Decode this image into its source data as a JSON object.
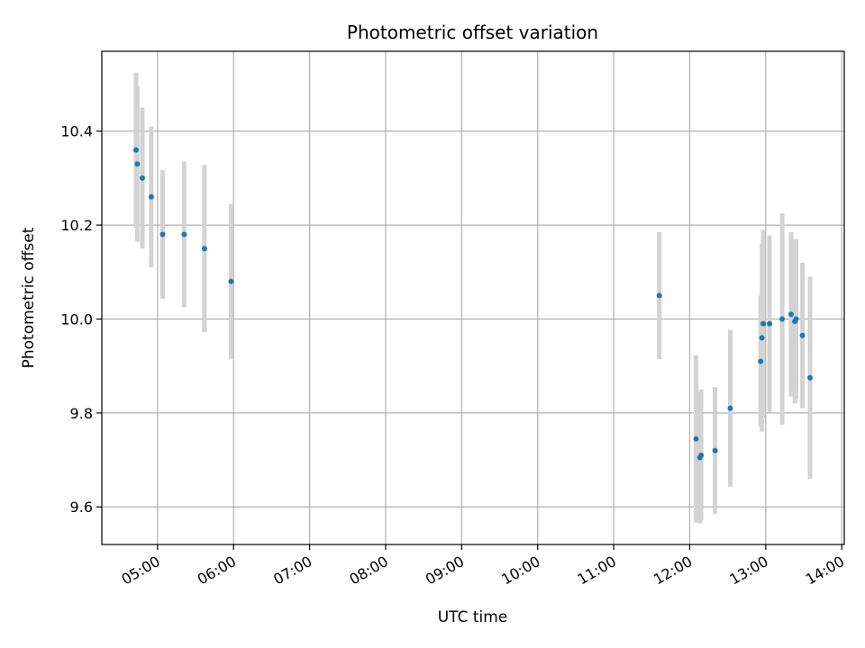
{
  "chart_data": {
    "type": "scatter",
    "title": "Photometric offset variation",
    "xlabel": "UTC time",
    "ylabel": "Photometric offset",
    "grid": true,
    "colors": {
      "points": "#1f77b4",
      "errorbars": "#d3d3d3",
      "grid": "#b0b0b0"
    },
    "xlim": [
      "04:16",
      "14:02"
    ],
    "ylim": [
      9.52,
      10.57
    ],
    "x_ticks": [
      "05:00",
      "06:00",
      "07:00",
      "08:00",
      "09:00",
      "10:00",
      "11:00",
      "12:00",
      "13:00",
      "14:00"
    ],
    "y_ticks": [
      "9.6",
      "9.8",
      "10.0",
      "10.2",
      "10.4"
    ],
    "series": [
      {
        "points": [
          {
            "x": "04:43",
            "y": 10.36,
            "err": 0.165
          },
          {
            "x": "04:44",
            "y": 10.33,
            "err": 0.165
          },
          {
            "x": "04:48",
            "y": 10.3,
            "err": 0.15
          },
          {
            "x": "04:55",
            "y": 10.26,
            "err": 0.15
          },
          {
            "x": "05:04",
            "y": 10.18,
            "err": 0.137
          },
          {
            "x": "05:21",
            "y": 10.18,
            "err": 0.155
          },
          {
            "x": "05:37",
            "y": 10.15,
            "err": 0.178
          },
          {
            "x": "05:58",
            "y": 10.08,
            "err": 0.165
          },
          {
            "x": "11:36",
            "y": 10.05,
            "err": 0.135
          },
          {
            "x": "12:05",
            "y": 9.745,
            "err": 0.178
          },
          {
            "x": "12:08",
            "y": 9.705,
            "err": 0.14
          },
          {
            "x": "12:09",
            "y": 9.71,
            "err": 0.14
          },
          {
            "x": "12:20",
            "y": 9.72,
            "err": 0.135
          },
          {
            "x": "12:32",
            "y": 9.81,
            "err": 0.167
          },
          {
            "x": "12:56",
            "y": 9.91,
            "err": 0.14
          },
          {
            "x": "12:57",
            "y": 9.96,
            "err": 0.2
          },
          {
            "x": "12:58",
            "y": 9.99,
            "err": 0.2
          },
          {
            "x": "13:03",
            "y": 9.99,
            "err": 0.188
          },
          {
            "x": "13:13",
            "y": 10.0,
            "err": 0.225
          },
          {
            "x": "13:20",
            "y": 10.01,
            "err": 0.175
          },
          {
            "x": "13:23",
            "y": 9.995,
            "err": 0.175
          },
          {
            "x": "13:24",
            "y": 10.0,
            "err": 0.17
          },
          {
            "x": "13:29",
            "y": 9.965,
            "err": 0.155
          },
          {
            "x": "13:35",
            "y": 9.875,
            "err": 0.215
          }
        ]
      }
    ]
  }
}
